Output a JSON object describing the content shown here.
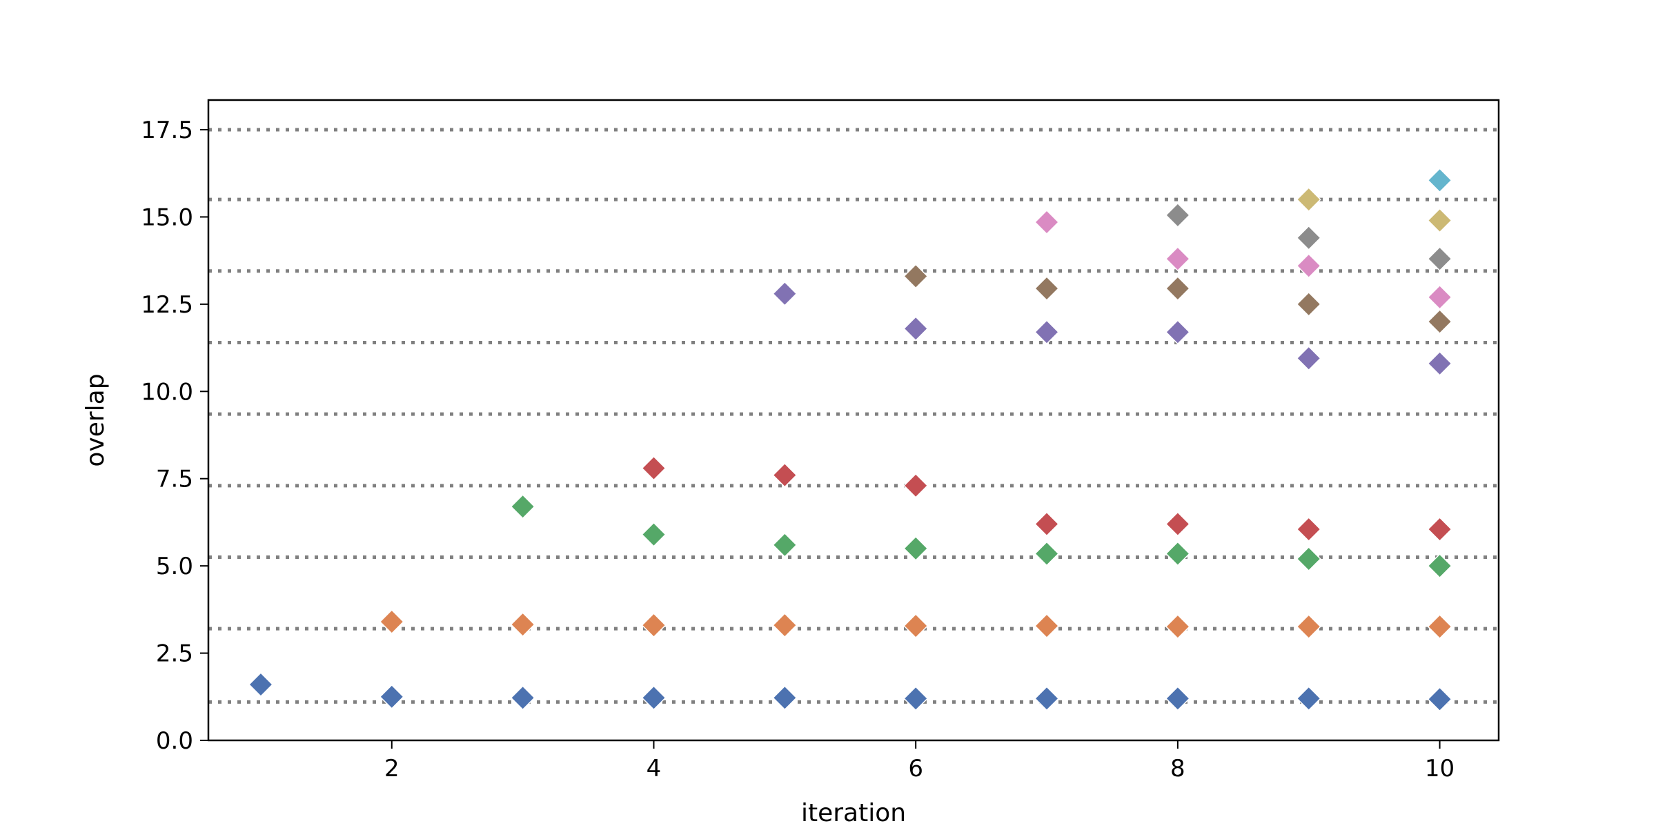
{
  "chart_data": {
    "type": "scatter",
    "marker": "diamond",
    "xlabel": "iteration",
    "ylabel": "overlap",
    "xlim": [
      0.6,
      10.45
    ],
    "ylim": [
      0.0,
      18.35
    ],
    "x_ticks": [
      2,
      4,
      6,
      8,
      10
    ],
    "x_tick_labels": [
      "2",
      "4",
      "6",
      "8",
      "10"
    ],
    "y_ticks": [
      0.0,
      2.5,
      5.0,
      7.5,
      10.0,
      12.5,
      15.0,
      17.5
    ],
    "y_tick_labels": [
      "0.0",
      "2.5",
      "5.0",
      "7.5",
      "10.0",
      "12.5",
      "15.0",
      "17.5"
    ],
    "hlines": [
      1.1,
      3.2,
      5.25,
      7.3,
      9.35,
      11.4,
      13.45,
      15.5,
      17.5
    ],
    "hline_color": "#808080",
    "grid": false,
    "legend": "none",
    "series": [
      {
        "color": "#4c72b0",
        "points": [
          [
            1,
            1.6
          ],
          [
            2,
            1.25
          ],
          [
            3,
            1.22
          ],
          [
            4,
            1.22
          ],
          [
            5,
            1.22
          ],
          [
            6,
            1.2
          ],
          [
            7,
            1.2
          ],
          [
            8,
            1.2
          ],
          [
            9,
            1.2
          ],
          [
            10,
            1.18
          ]
        ]
      },
      {
        "color": "#dd8452",
        "points": [
          [
            2,
            3.4
          ],
          [
            3,
            3.32
          ],
          [
            4,
            3.3
          ],
          [
            5,
            3.3
          ],
          [
            6,
            3.28
          ],
          [
            7,
            3.28
          ],
          [
            8,
            3.26
          ],
          [
            9,
            3.26
          ],
          [
            10,
            3.26
          ]
        ]
      },
      {
        "color": "#55a868",
        "points": [
          [
            3,
            6.7
          ],
          [
            4,
            5.9
          ],
          [
            5,
            5.6
          ],
          [
            6,
            5.5
          ],
          [
            7,
            5.35
          ],
          [
            8,
            5.35
          ],
          [
            9,
            5.2
          ],
          [
            10,
            5.0
          ]
        ]
      },
      {
        "color": "#c44e52",
        "points": [
          [
            4,
            7.8
          ],
          [
            5,
            7.6
          ],
          [
            6,
            7.3
          ],
          [
            7,
            6.2
          ],
          [
            8,
            6.2
          ],
          [
            9,
            6.05
          ],
          [
            10,
            6.05
          ]
        ]
      },
      {
        "color": "#8172b3",
        "points": [
          [
            5,
            12.8
          ],
          [
            6,
            11.8
          ],
          [
            7,
            11.7
          ],
          [
            8,
            11.7
          ],
          [
            9,
            10.95
          ],
          [
            10,
            10.8
          ]
        ]
      },
      {
        "color": "#937860",
        "points": [
          [
            6,
            13.3
          ],
          [
            7,
            12.95
          ],
          [
            8,
            12.95
          ],
          [
            9,
            12.5
          ],
          [
            10,
            12.0
          ]
        ]
      },
      {
        "color": "#da8bc3",
        "points": [
          [
            7,
            14.85
          ],
          [
            8,
            13.8
          ],
          [
            9,
            13.6
          ],
          [
            10,
            12.7
          ]
        ]
      },
      {
        "color": "#8c8c8c",
        "points": [
          [
            8,
            15.05
          ],
          [
            9,
            14.4
          ],
          [
            10,
            13.8
          ]
        ]
      },
      {
        "color": "#ccb974",
        "points": [
          [
            9,
            15.5
          ],
          [
            10,
            14.9
          ]
        ]
      },
      {
        "color": "#64b5cd",
        "points": [
          [
            10,
            16.05
          ]
        ]
      }
    ]
  }
}
